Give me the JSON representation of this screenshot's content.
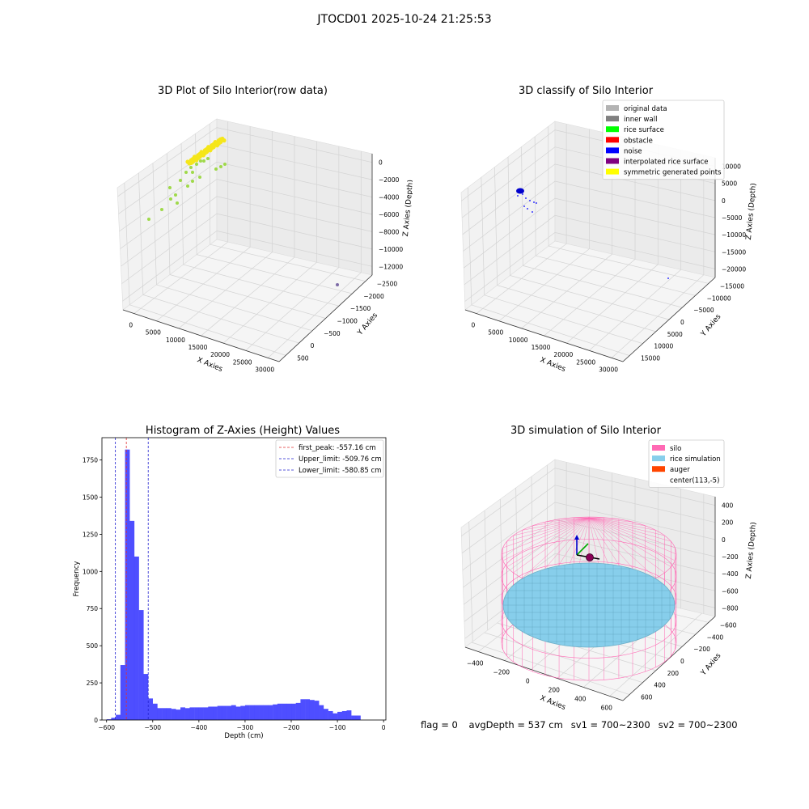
{
  "figure": {
    "suptitle": "JTOCD01 2025-10-24 21:25:53",
    "status": {
      "flag": "flag = 0",
      "avg_depth": "avgDepth = 537 cm",
      "sv1": "sv1 = 700~2300",
      "sv2": "sv2 = 700~2300"
    }
  },
  "chart_data": [
    {
      "type": "scatter",
      "title": "3D Plot of Silo Interior(row data)",
      "xlabel": "X Axies",
      "ylabel": "Y Axies",
      "zlabel": "Z Axies (Depth)",
      "x_ticks": [
        "0",
        "5000",
        "10000",
        "15000",
        "20000",
        "25000",
        "30000"
      ],
      "y_ticks": [
        "500",
        "0",
        "−500",
        "−1000",
        "−1500",
        "−2000",
        "−2500"
      ],
      "z_ticks": [
        "0",
        "−2000",
        "−4000",
        "−6000",
        "−8000",
        "−10000",
        "−12000"
      ],
      "colors": [
        "#f5e61a",
        "#9fd94a",
        "#7d6aa6"
      ]
    },
    {
      "type": "scatter",
      "title": "3D classify of Silo Interior",
      "xlabel": "X Axies",
      "ylabel": "Y Axies",
      "zlabel": "Z Axies (Depth)",
      "x_ticks": [
        "0",
        "5000",
        "10000",
        "15000",
        "20000",
        "25000",
        "30000"
      ],
      "y_ticks": [
        "15000",
        "10000",
        "5000",
        "0",
        "−5000",
        "−10000",
        "−15000"
      ],
      "z_ticks": [
        "10000",
        "5000",
        "0",
        "−5000",
        "−10000",
        "−15000",
        "−20000"
      ],
      "legend_position": "top-right",
      "legend": [
        {
          "label": "original data",
          "color": "#b3b3b3"
        },
        {
          "label": "inner wall",
          "color": "#808080"
        },
        {
          "label": "rice surface",
          "color": "#00ff00"
        },
        {
          "label": "obstacle",
          "color": "#ff0000"
        },
        {
          "label": "noise",
          "color": "#0000ff"
        },
        {
          "label": "interpolated rice surface",
          "color": "#800080"
        },
        {
          "label": "symmetric generated points",
          "color": "#ffff00"
        }
      ]
    },
    {
      "type": "bar",
      "title": "Histogram of Z-Axies (Height) Values",
      "xlabel": "Depth (cm)",
      "ylabel": "Frequency",
      "xlim": [
        -610,
        5
      ],
      "ylim": [
        0,
        1900
      ],
      "x_ticks": [
        -600,
        -500,
        -400,
        -300,
        -200,
        -100,
        0
      ],
      "x_tick_labels": [
        "−600",
        "−500",
        "−400",
        "−300",
        "−200",
        "−100",
        "0"
      ],
      "y_ticks": [
        0,
        250,
        500,
        750,
        1000,
        1250,
        1500,
        1750
      ],
      "y_tick_labels": [
        "0",
        "250",
        "500",
        "750",
        "1000",
        "1250",
        "1500",
        "1750"
      ],
      "bar_color": "#4444ff",
      "bin_width": 10,
      "bin_starts": [
        -600,
        -590,
        -580,
        -570,
        -560,
        -550,
        -540,
        -530,
        -520,
        -510,
        -500,
        -490,
        -480,
        -470,
        -460,
        -450,
        -440,
        -430,
        -420,
        -410,
        -400,
        -390,
        -380,
        -370,
        -360,
        -350,
        -340,
        -330,
        -320,
        -310,
        -300,
        -290,
        -280,
        -270,
        -260,
        -250,
        -240,
        -230,
        -220,
        -210,
        -200,
        -190,
        -180,
        -170,
        -160,
        -150,
        -140,
        -130,
        -120,
        -110,
        -100,
        -90,
        -80,
        -70,
        -60,
        -50,
        -40,
        -30,
        -20,
        -10
      ],
      "values": [
        5,
        15,
        35,
        370,
        1820,
        1340,
        1100,
        740,
        310,
        145,
        110,
        80,
        80,
        80,
        75,
        70,
        85,
        80,
        85,
        85,
        85,
        85,
        90,
        90,
        95,
        95,
        95,
        100,
        90,
        95,
        100,
        100,
        100,
        100,
        100,
        100,
        105,
        110,
        110,
        110,
        110,
        115,
        140,
        140,
        135,
        130,
        100,
        75,
        60,
        45,
        55,
        60,
        65,
        30,
        30,
        0,
        0,
        0,
        0,
        0
      ],
      "legend_position": "top-right",
      "vlines": [
        {
          "label": "first_peak: -557.16 cm",
          "x": -557.16,
          "color": "#e03030"
        },
        {
          "label": "Upper_limit: -509.76 cm",
          "x": -509.76,
          "color": "#2020d0"
        },
        {
          "label": "Lower_limit: -580.85 cm",
          "x": -580.85,
          "color": "#2020d0"
        }
      ]
    },
    {
      "type": "scatter",
      "title": "3D simulation of Silo Interior",
      "xlabel": "X Axies",
      "ylabel": "Y Axies",
      "zlabel": "Z Axies (Depth)",
      "x_ticks": [
        "−400",
        "−200",
        "0",
        "200",
        "400",
        "600"
      ],
      "y_ticks": [
        "600",
        "400",
        "200",
        "0",
        "−200",
        "−400",
        "−600"
      ],
      "z_ticks": [
        "400",
        "200",
        "0",
        "−200",
        "−400",
        "−600",
        "−800"
      ],
      "legend_position": "top-right",
      "legend": [
        {
          "label": "silo",
          "color": "#ff69b4"
        },
        {
          "label": "rice simulation",
          "color": "#87ceeb"
        },
        {
          "label": "auger",
          "color": "#ff4500"
        },
        {
          "label": "center(113,-5)",
          "color": "#ffffff"
        }
      ]
    }
  ]
}
